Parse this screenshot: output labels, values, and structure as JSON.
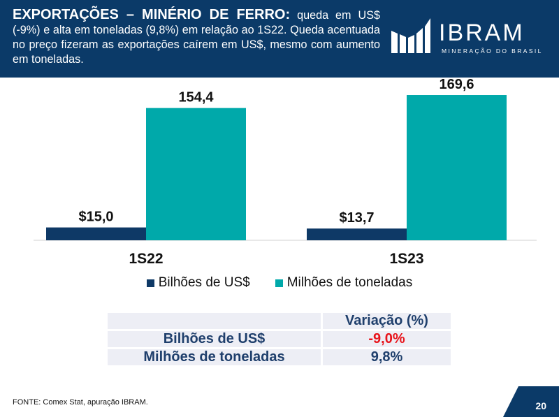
{
  "header": {
    "title_bold": "EXPORTAÇÕES – MINÉRIO DE FERRO:",
    "title_rest": " queda em US$ (-9%) e alta em toneladas (9,8%) em relação ao 1S22. Queda acentuada no preço fizeram as exportações caírem em US$, mesmo com aumento em toneladas."
  },
  "logo": {
    "name": "IBRAM",
    "subtitle": "MINERAÇÃO DO BRASIL",
    "icon": "ibram-logo-icon"
  },
  "colors": {
    "navy": "#0b3a68",
    "bar_usd": "#0e3966",
    "bar_ton": "#00a9aa",
    "negative": "#e8141b"
  },
  "chart_data": {
    "type": "bar",
    "categories": [
      "1S22",
      "1S23"
    ],
    "series": [
      {
        "name": "Bilhões de US$",
        "values": [
          15.0,
          13.7
        ],
        "labels": [
          "$15,0",
          "$13,7"
        ]
      },
      {
        "name": "Milhões de toneladas",
        "values": [
          154.4,
          169.6
        ],
        "labels": [
          "154,4",
          "169,6"
        ]
      }
    ],
    "title": "",
    "xlabel": "",
    "ylabel": "",
    "ylim": [
      0,
      190
    ],
    "grid": false,
    "legend_position": "bottom"
  },
  "legend": {
    "usd": "Bilhões de US$",
    "ton": "Milhões de toneladas"
  },
  "variation_table": {
    "header": "Variação (%)",
    "rows": [
      {
        "label": "Bilhões de US$",
        "value": "-9,0%"
      },
      {
        "label": "Milhões de toneladas",
        "value": "9,8%"
      }
    ]
  },
  "footer": {
    "source": "FONTE: Comex Stat, apuração IBRAM.",
    "page": "20"
  }
}
